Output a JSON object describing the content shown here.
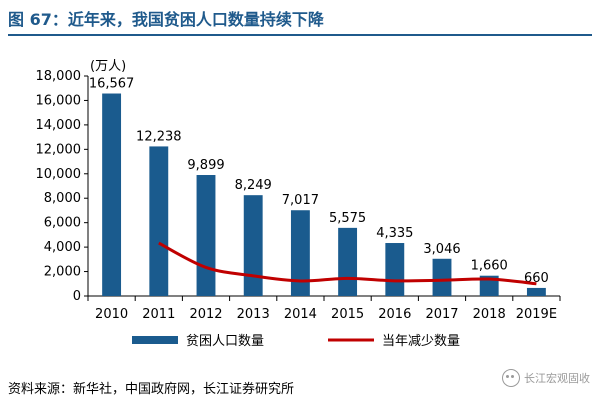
{
  "figure": {
    "title": "图 67：近年来，我国贫困人口数量持续下降",
    "source": "资料来源：新华社，中国政府网，长江证券研究所",
    "watermark": "长江宏观固收"
  },
  "colors": {
    "bar": "#1a5b8e",
    "line": "#c00000",
    "axis": "#000000"
  },
  "chart_data": {
    "type": "bar",
    "categories": [
      "2010",
      "2011",
      "2012",
      "2013",
      "2014",
      "2015",
      "2016",
      "2017",
      "2018",
      "2019E"
    ],
    "unit_label": "(万人)",
    "ylim": [
      0,
      18000
    ],
    "yticks": [
      0,
      2000,
      4000,
      6000,
      8000,
      10000,
      12000,
      14000,
      16000,
      18000
    ],
    "ytick_labels": [
      "0",
      "2,000",
      "4,000",
      "6,000",
      "8,000",
      "10,000",
      "12,000",
      "14,000",
      "16,000",
      "18,000"
    ],
    "grid": false,
    "legend_position": "bottom",
    "series": [
      {
        "name": "贫困人口数量",
        "type": "bar",
        "values": [
          16567,
          12238,
          9899,
          8249,
          7017,
          5575,
          4335,
          3046,
          1660,
          660
        ],
        "labels": [
          "16,567",
          "12,238",
          "9,899",
          "8,249",
          "7,017",
          "5,575",
          "4,335",
          "3,046",
          "1,660",
          "660"
        ]
      },
      {
        "name": "当年减少数量",
        "type": "line",
        "values": [
          null,
          4329,
          2339,
          1650,
          1232,
          1442,
          1240,
          1289,
          1386,
          1000
        ]
      }
    ]
  }
}
